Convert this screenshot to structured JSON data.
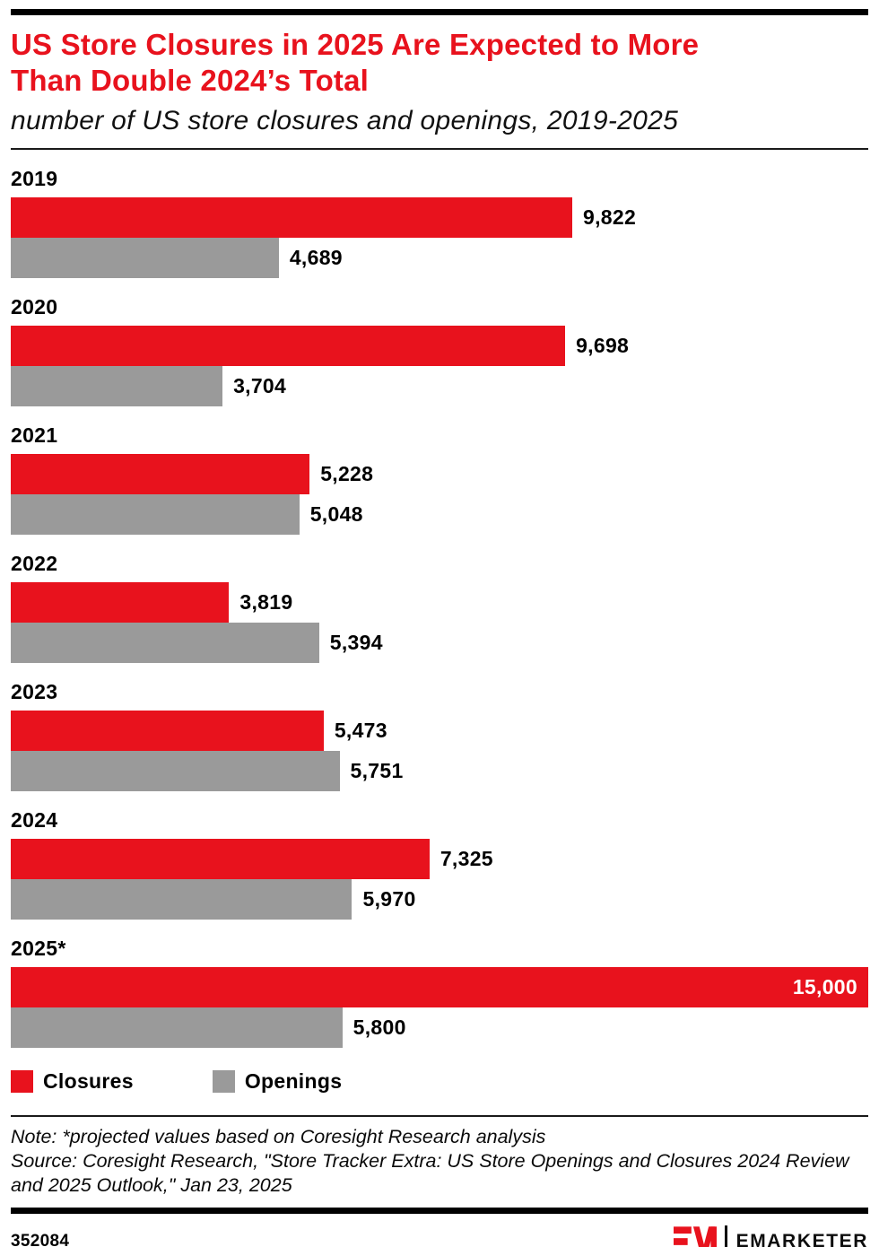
{
  "header": {
    "title_line1": "US Store Closures in 2025 Are Expected to More",
    "title_line2": "Than Double 2024’s Total",
    "subtitle": "number of US store closures and openings, 2019-2025"
  },
  "chart_data": {
    "type": "bar",
    "orientation": "horizontal",
    "title": "US Store Closures in 2025 Are Expected to More Than Double 2024’s Total",
    "subtitle": "number of US store closures and openings, 2019-2025",
    "categories": [
      "2019",
      "2020",
      "2021",
      "2022",
      "2023",
      "2024",
      "2025*"
    ],
    "series": [
      {
        "name": "Closures",
        "color": "#e8121d",
        "values": [
          9822,
          9698,
          5228,
          3819,
          5473,
          7325,
          15000
        ]
      },
      {
        "name": "Openings",
        "color": "#9a9a9a",
        "values": [
          4689,
          3704,
          5048,
          5394,
          5751,
          5970,
          5800
        ]
      }
    ],
    "value_labels": {
      "Closures": [
        "9,822",
        "9,698",
        "5,228",
        "3,819",
        "5,473",
        "7,325",
        "15,000"
      ],
      "Openings": [
        "4,689",
        "3,704",
        "5,048",
        "5,394",
        "5,751",
        "5,970",
        "5,800"
      ]
    },
    "xlim": [
      0,
      15000
    ],
    "grid": false,
    "legend_position": "bottom"
  },
  "legend": {
    "items": [
      {
        "label": "Closures",
        "color": "#e8121d"
      },
      {
        "label": "Openings",
        "color": "#9a9a9a"
      }
    ]
  },
  "notes": {
    "note": "Note: *projected values based on Coresight Research analysis",
    "source": "Source: Coresight Research, \"Store Tracker Extra: US Store Openings and Closures 2024 Review and 2025 Outlook,\" Jan 23, 2025"
  },
  "footer": {
    "chart_id": "352084",
    "brand": "EMARKETER"
  },
  "colors": {
    "accent_red": "#e8121d",
    "bar_gray": "#9a9a9a",
    "rule_black": "#000000"
  }
}
